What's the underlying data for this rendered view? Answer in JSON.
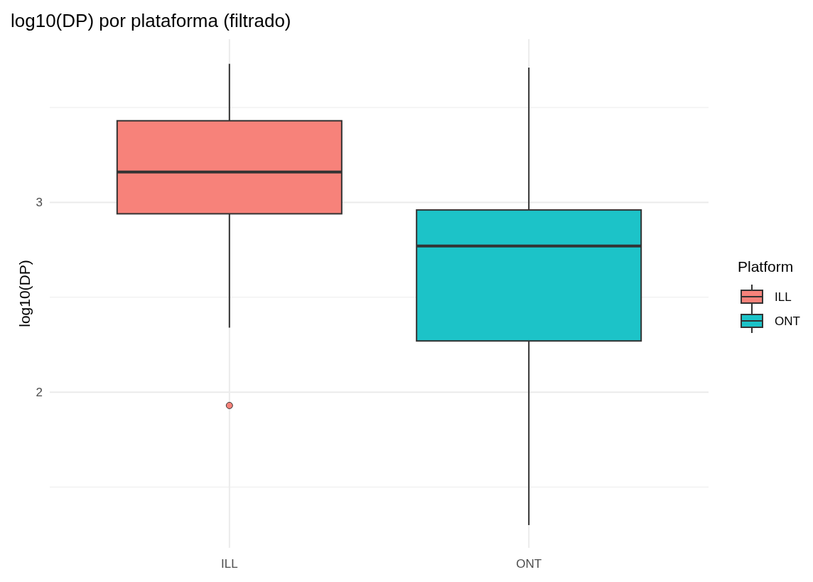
{
  "chart_data": {
    "type": "box",
    "title": "log10(DP) por plataforma (filtrado)",
    "ylabel": "log10(DP)",
    "legend_title": "Platform",
    "categories": [
      "ILL",
      "ONT"
    ],
    "series": [
      {
        "name": "ILL",
        "color": "#f7827a",
        "boxes": [
          {
            "low": 2.34,
            "q1": 2.94,
            "median": 3.16,
            "q3": 3.43,
            "high": 3.73,
            "outliers": [
              1.93
            ]
          },
          null
        ]
      },
      {
        "name": "ONT",
        "color": "#1cc3c8",
        "boxes": [
          null,
          {
            "low": 1.3,
            "q1": 2.27,
            "median": 2.77,
            "q3": 2.96,
            "high": 3.71
          }
        ]
      }
    ],
    "ylim": [
      1.18,
      3.86
    ],
    "yticks": [
      {
        "value": 1.5,
        "label": null
      },
      2,
      {
        "value": 2.5,
        "label": null
      },
      3,
      {
        "value": 3.5,
        "label": null
      }
    ],
    "grid": true,
    "legend": "right"
  }
}
